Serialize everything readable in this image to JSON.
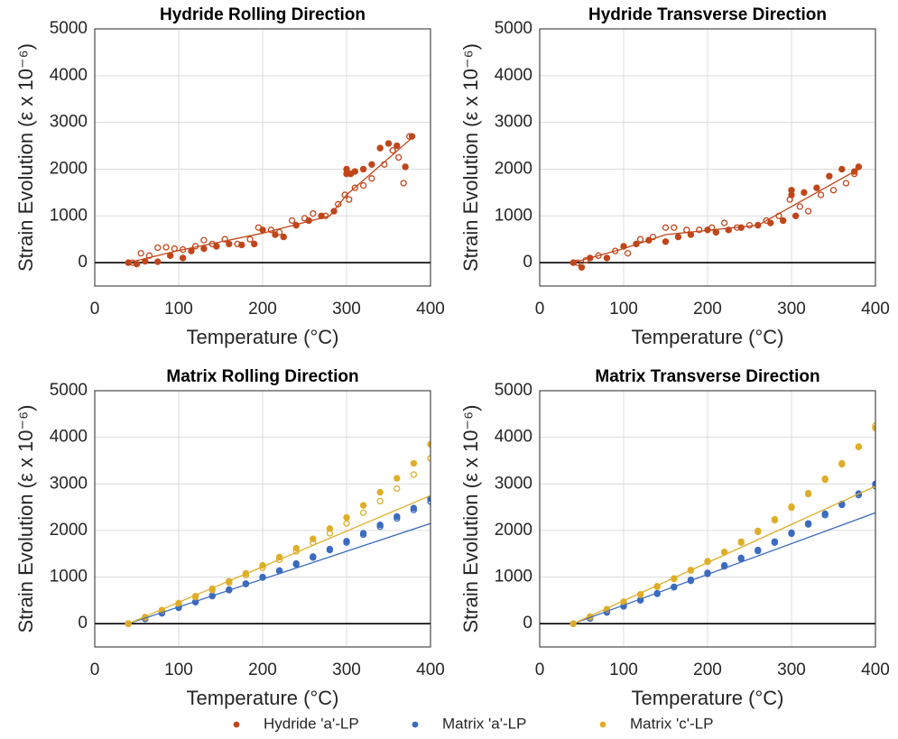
{
  "chart_data": [
    {
      "type": "scatter",
      "title": "Hydride Rolling Direction",
      "x_label": "Temperature (°C)",
      "y_label": "Strain Evolution (ε x 10⁻⁶)",
      "xlim": [
        0,
        400
      ],
      "ylim": [
        -500,
        5000
      ],
      "xticks": [
        0,
        100,
        200,
        300,
        400
      ],
      "yticks": [
        0,
        1000,
        2000,
        3000,
        4000,
        5000
      ],
      "grid": true,
      "hline": 0,
      "series": [
        {
          "color": "#c0461a",
          "marker": "filled",
          "x": [
            40,
            50,
            60,
            75,
            90,
            105,
            115,
            130,
            145,
            160,
            175,
            190,
            200,
            215,
            225,
            240,
            255,
            270,
            285,
            300,
            300,
            305,
            310,
            320,
            330,
            340,
            350,
            360,
            370,
            378
          ],
          "values": [
            0,
            -30,
            30,
            20,
            150,
            100,
            250,
            300,
            350,
            400,
            380,
            400,
            700,
            600,
            550,
            800,
            900,
            1000,
            1100,
            1900,
            2000,
            1900,
            1950,
            2000,
            2100,
            2450,
            2550,
            2500,
            2050,
            2700
          ]
        },
        {
          "color": "#c0461a",
          "marker": "open",
          "x": [
            45,
            55,
            65,
            75,
            85,
            95,
            105,
            120,
            130,
            140,
            155,
            170,
            185,
            195,
            210,
            220,
            235,
            250,
            260,
            275,
            290,
            298,
            303,
            310,
            320,
            330,
            345,
            355,
            362,
            368,
            375
          ],
          "values": [
            0,
            200,
            150,
            320,
            330,
            300,
            280,
            350,
            480,
            400,
            500,
            400,
            500,
            750,
            700,
            650,
            900,
            950,
            1050,
            1000,
            1250,
            1450,
            1350,
            1600,
            1650,
            1800,
            2100,
            2400,
            2250,
            1700,
            2700
          ]
        },
        {
          "color": "#c0461a",
          "marker": "line",
          "x": [
            40,
            100,
            200,
            280,
            300,
            380
          ],
          "values": [
            0,
            260,
            630,
            1000,
            1450,
            2700
          ]
        }
      ]
    },
    {
      "type": "scatter",
      "title": "Hydride Transverse Direction",
      "x_label": "Temperature (°C)",
      "y_label": "Strain Evolution (ε x 10⁻⁶)",
      "xlim": [
        0,
        400
      ],
      "ylim": [
        -500,
        5000
      ],
      "xticks": [
        0,
        100,
        200,
        300,
        400
      ],
      "yticks": [
        0,
        1000,
        2000,
        3000,
        4000,
        5000
      ],
      "grid": true,
      "hline": 0,
      "series": [
        {
          "color": "#c0461a",
          "marker": "filled",
          "x": [
            40,
            50,
            60,
            80,
            100,
            115,
            130,
            150,
            165,
            180,
            200,
            210,
            225,
            240,
            260,
            275,
            290,
            300,
            300,
            305,
            315,
            330,
            345,
            360,
            375,
            380
          ],
          "values": [
            0,
            -100,
            100,
            100,
            350,
            400,
            480,
            450,
            550,
            600,
            700,
            650,
            700,
            750,
            800,
            850,
            900,
            1550,
            1450,
            1000,
            1500,
            1600,
            1850,
            2000,
            1950,
            2050
          ]
        },
        {
          "color": "#c0461a",
          "marker": "open",
          "x": [
            45,
            55,
            70,
            90,
            105,
            120,
            135,
            150,
            160,
            175,
            190,
            205,
            220,
            235,
            250,
            270,
            285,
            298,
            310,
            320,
            335,
            350,
            365,
            375
          ],
          "values": [
            0,
            50,
            150,
            250,
            200,
            500,
            550,
            750,
            750,
            700,
            700,
            750,
            850,
            750,
            800,
            900,
            1000,
            1350,
            1200,
            1100,
            1450,
            1550,
            1700,
            1900
          ]
        },
        {
          "color": "#c0461a",
          "marker": "line",
          "x": [
            40,
            100,
            150,
            260,
            300,
            380
          ],
          "values": [
            0,
            300,
            600,
            800,
            1200,
            2000
          ]
        }
      ]
    },
    {
      "type": "scatter",
      "title": "Matrix Rolling Direction",
      "x_label": "Temperature (°C)",
      "y_label": "Strain Evolution (ε x 10⁻⁶)",
      "xlim": [
        0,
        400
      ],
      "ylim": [
        -500,
        5000
      ],
      "xticks": [
        0,
        100,
        200,
        300,
        400
      ],
      "yticks": [
        0,
        1000,
        2000,
        3000,
        4000,
        5000
      ],
      "grid": true,
      "hline": 0,
      "series": [
        {
          "color": "#3a6bbf",
          "marker": "filled",
          "x": [
            40,
            60,
            80,
            100,
            120,
            140,
            160,
            180,
            200,
            220,
            240,
            260,
            280,
            300,
            320,
            340,
            360,
            380,
            400
          ],
          "values": [
            0,
            110,
            230,
            350,
            470,
            600,
            730,
            860,
            1000,
            1140,
            1290,
            1440,
            1600,
            1770,
            1940,
            2120,
            2300,
            2480,
            2680
          ]
        },
        {
          "color": "#3a6bbf",
          "marker": "open",
          "x": [
            40,
            60,
            80,
            100,
            120,
            140,
            160,
            180,
            200,
            220,
            240,
            260,
            280,
            300,
            320,
            340,
            360,
            380,
            400
          ],
          "values": [
            0,
            100,
            220,
            340,
            460,
            590,
            720,
            850,
            990,
            1130,
            1270,
            1420,
            1580,
            1740,
            1910,
            2080,
            2260,
            2440,
            2620
          ]
        },
        {
          "color": "#dfae28",
          "marker": "filled",
          "x": [
            40,
            60,
            80,
            100,
            120,
            140,
            160,
            180,
            200,
            220,
            240,
            260,
            280,
            300,
            320,
            340,
            360,
            380,
            400
          ],
          "values": [
            0,
            140,
            290,
            440,
            590,
            750,
            910,
            1080,
            1250,
            1430,
            1620,
            1820,
            2040,
            2280,
            2540,
            2820,
            3120,
            3440,
            3850
          ]
        },
        {
          "color": "#dfae28",
          "marker": "open",
          "x": [
            40,
            60,
            80,
            100,
            120,
            140,
            160,
            180,
            200,
            220,
            240,
            260,
            280,
            300,
            320,
            340,
            360,
            380,
            400
          ],
          "values": [
            0,
            130,
            280,
            420,
            570,
            720,
            880,
            1040,
            1200,
            1370,
            1550,
            1740,
            1940,
            2150,
            2380,
            2630,
            2900,
            3200,
            3550
          ]
        },
        {
          "color": "#3a6bbf",
          "marker": "line",
          "x": [
            40,
            400
          ],
          "values": [
            0,
            2150
          ]
        },
        {
          "color": "#dfae28",
          "marker": "line",
          "x": [
            40,
            400
          ],
          "values": [
            0,
            2750
          ]
        }
      ]
    },
    {
      "type": "scatter",
      "title": "Matrix Transverse Direction",
      "x_label": "Temperature (°C)",
      "y_label": "Strain Evolution (ε x 10⁻⁶)",
      "xlim": [
        0,
        400
      ],
      "ylim": [
        -500,
        5000
      ],
      "xticks": [
        0,
        100,
        200,
        300,
        400
      ],
      "yticks": [
        0,
        1000,
        2000,
        3000,
        4000,
        5000
      ],
      "grid": true,
      "hline": 0,
      "series": [
        {
          "color": "#3a6bbf",
          "marker": "filled",
          "x": [
            40,
            60,
            80,
            100,
            120,
            140,
            160,
            180,
            200,
            220,
            240,
            260,
            280,
            300,
            320,
            340,
            360,
            380,
            400
          ],
          "values": [
            0,
            120,
            250,
            380,
            510,
            650,
            790,
            940,
            1090,
            1250,
            1410,
            1580,
            1760,
            1950,
            2150,
            2360,
            2570,
            2790,
            3000
          ]
        },
        {
          "color": "#3a6bbf",
          "marker": "open",
          "x": [
            40,
            60,
            80,
            100,
            120,
            140,
            160,
            180,
            200,
            220,
            240,
            260,
            280,
            300,
            320,
            340,
            360,
            380,
            400
          ],
          "values": [
            0,
            110,
            240,
            370,
            500,
            640,
            780,
            920,
            1070,
            1230,
            1390,
            1560,
            1740,
            1930,
            2130,
            2330,
            2550,
            2760,
            2950
          ]
        },
        {
          "color": "#dfae28",
          "marker": "filled",
          "x": [
            40,
            60,
            80,
            100,
            120,
            140,
            160,
            180,
            200,
            220,
            240,
            260,
            280,
            300,
            320,
            340,
            360,
            380,
            400
          ],
          "values": [
            0,
            150,
            310,
            470,
            630,
            800,
            970,
            1150,
            1340,
            1540,
            1760,
            1990,
            2240,
            2510,
            2800,
            3110,
            3440,
            3800,
            4200
          ]
        },
        {
          "color": "#dfae28",
          "marker": "open",
          "x": [
            40,
            60,
            80,
            100,
            120,
            140,
            160,
            180,
            200,
            220,
            240,
            260,
            280,
            300,
            320,
            340,
            360,
            380,
            400
          ],
          "values": [
            0,
            140,
            300,
            460,
            620,
            790,
            960,
            1140,
            1330,
            1530,
            1740,
            1970,
            2220,
            2490,
            2780,
            3090,
            3420,
            3790,
            4250
          ]
        },
        {
          "color": "#3a6bbf",
          "marker": "line",
          "x": [
            40,
            400
          ],
          "values": [
            0,
            2380
          ]
        },
        {
          "color": "#dfae28",
          "marker": "line",
          "x": [
            40,
            400
          ],
          "values": [
            0,
            2950
          ]
        }
      ]
    }
  ],
  "legend": {
    "position": "bottom",
    "entries": [
      {
        "name": "Hydride 'a'-LP",
        "color": "#c0461a"
      },
      {
        "name": "Matrix 'a'-LP",
        "color": "#3a6bbf"
      },
      {
        "name": "Matrix 'c'-LP",
        "color": "#dfae28"
      }
    ]
  }
}
